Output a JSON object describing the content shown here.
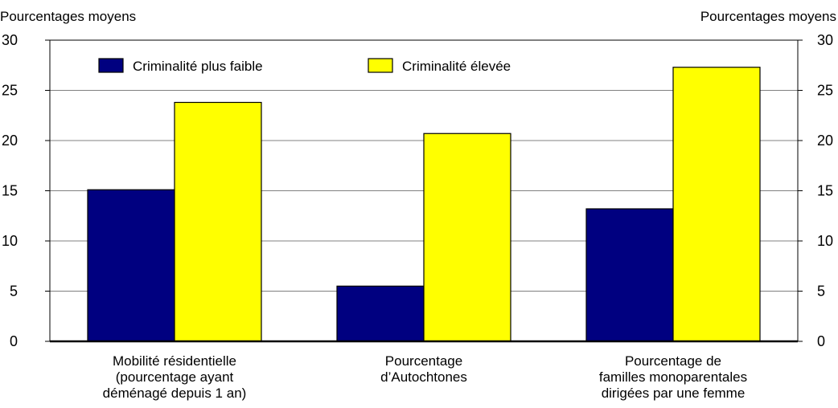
{
  "chart_data": {
    "type": "bar",
    "ylabel_left": "Pourcentages moyens",
    "ylabel_right": "Pourcentages moyens",
    "ylim": [
      0,
      30
    ],
    "yticks": [
      0,
      5,
      10,
      15,
      20,
      25,
      30
    ],
    "grid": true,
    "legend_position": "top-left",
    "categories": [
      [
        "Mobilité résidentielle",
        "(pourcentage ayant",
        "déménagé depuis 1 an)"
      ],
      [
        "Pourcentage",
        "d’Autochtones"
      ],
      [
        "Pourcentage de",
        "familles monoparentales",
        "dirigées par une femme"
      ]
    ],
    "series": [
      {
        "name": "Criminalité plus faible",
        "color": "#000080",
        "values": [
          15.1,
          5.5,
          13.2
        ]
      },
      {
        "name": "Criminalité élevée",
        "color": "#FFFF00",
        "values": [
          23.8,
          20.7,
          27.3
        ]
      }
    ]
  }
}
